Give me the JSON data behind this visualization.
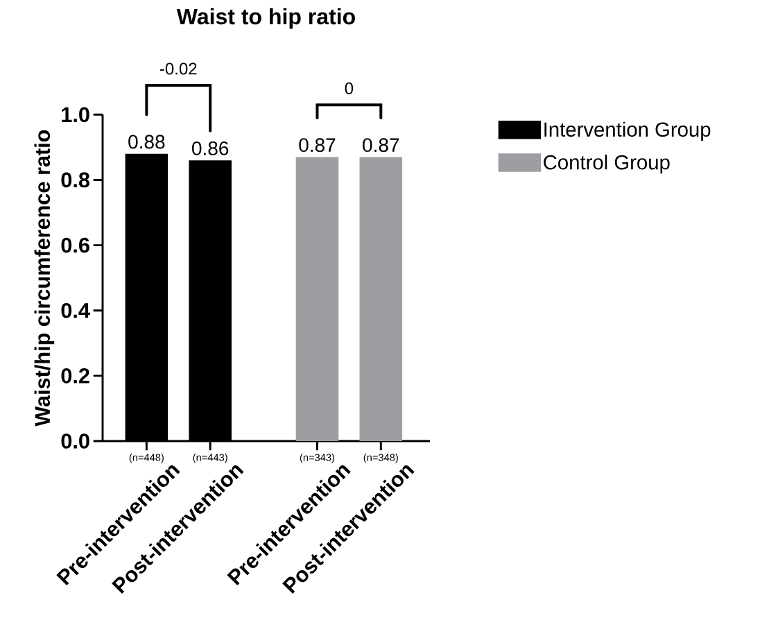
{
  "chart_data": {
    "type": "bar",
    "title": "Waist to hip ratio",
    "ylabel": "Waist/hip circumference ratio",
    "categories": [
      "Pre-intervention",
      "Post-intervention",
      "Pre-intervention",
      "Post-intervention"
    ],
    "series": [
      {
        "name": "Intervention Group",
        "color": "#000000",
        "values": [
          0.88,
          0.86,
          null,
          null
        ]
      },
      {
        "name": "Control Group",
        "color": "#9e9ea2",
        "values": [
          null,
          null,
          0.87,
          0.87
        ]
      }
    ],
    "ylim": [
      0,
      1.0
    ],
    "yticks": [
      {
        "value": 0,
        "label": "0.0"
      },
      0.2,
      0.4,
      0.6,
      0.8,
      {
        "value": 1.0,
        "label": "1.0"
      }
    ],
    "data_labels": true,
    "legend": "right",
    "annotations": [
      "-0.02",
      "0",
      "(n=448)",
      "(n=443)",
      "(n=343)",
      "(n=348)"
    ]
  }
}
